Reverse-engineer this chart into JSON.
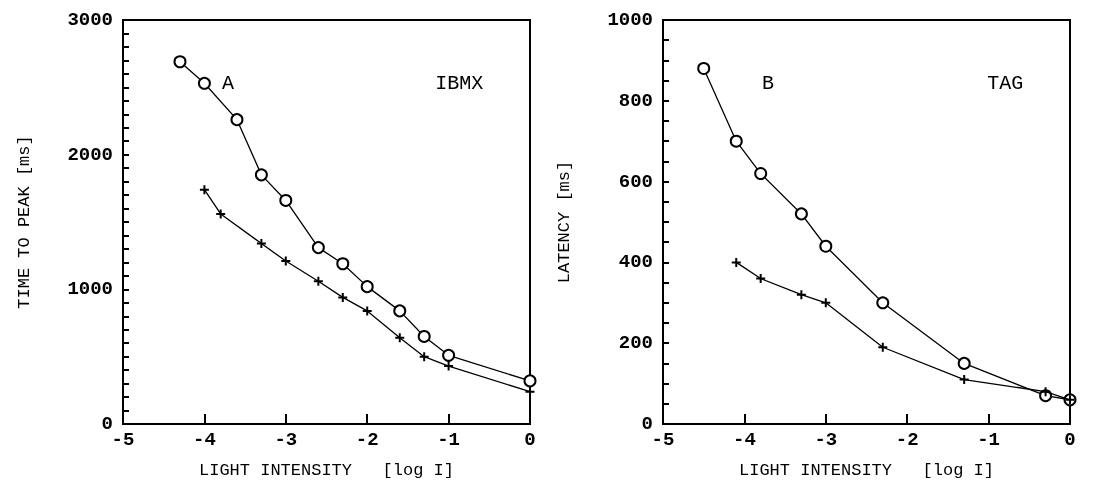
{
  "chart_data": [
    {
      "type": "line",
      "xlabel": "LIGHT INTENSITY   [log I]",
      "ylabel": "TIME TO PEAK [ms]",
      "annotations": [
        "A",
        "IBMX"
      ],
      "xlim": [
        -5,
        0
      ],
      "xticks": [
        -5,
        -4,
        -3,
        -2,
        -1,
        0
      ],
      "ylim": [
        0,
        3000
      ],
      "yticks": [
        0,
        {
          "value": 100,
          "label": null
        },
        {
          "value": 200,
          "label": null
        },
        {
          "value": 300,
          "label": null
        },
        {
          "value": 400,
          "label": null
        },
        {
          "value": 500,
          "label": null
        },
        {
          "value": 600,
          "label": null
        },
        {
          "value": 700,
          "label": null
        },
        {
          "value": 800,
          "label": null
        },
        {
          "value": 900,
          "label": null
        },
        1000,
        {
          "value": 1100,
          "label": null
        },
        {
          "value": 1200,
          "label": null
        },
        {
          "value": 1300,
          "label": null
        },
        {
          "value": 1400,
          "label": null
        },
        {
          "value": 1500,
          "label": null
        },
        {
          "value": 1600,
          "label": null
        },
        {
          "value": 1700,
          "label": null
        },
        {
          "value": 1800,
          "label": null
        },
        {
          "value": 1900,
          "label": null
        },
        2000,
        {
          "value": 2100,
          "label": null
        },
        {
          "value": 2200,
          "label": null
        },
        {
          "value": 2300,
          "label": null
        },
        {
          "value": 2400,
          "label": null
        },
        {
          "value": 2500,
          "label": null
        },
        {
          "value": 2600,
          "label": null
        },
        {
          "value": 2700,
          "label": null
        },
        {
          "value": 2800,
          "label": null
        },
        {
          "value": 2900,
          "label": null
        },
        3000
      ],
      "grid": false,
      "line_style": "solid",
      "series": [
        {
          "color": "#000000",
          "marker": "circle",
          "x": [
            -4.3,
            -4.0,
            -3.6,
            -3.3,
            -3.0,
            -2.6,
            -2.3,
            -2.0,
            -1.6,
            -1.3,
            -1.0,
            0
          ],
          "values": [
            2690,
            2530,
            2260,
            1850,
            1660,
            1310,
            1190,
            1020,
            840,
            650,
            510,
            320
          ]
        },
        {
          "color": "#000000",
          "marker": "cross",
          "x": [
            -4.0,
            -3.8,
            -3.3,
            -3.0,
            -2.6,
            -2.3,
            -2.0,
            -1.6,
            -1.3,
            -1.0,
            0
          ],
          "values": [
            1740,
            1560,
            1340,
            1210,
            1060,
            940,
            840,
            640,
            500,
            430,
            240
          ]
        }
      ]
    },
    {
      "type": "line",
      "xlabel": "LIGHT INTENSITY   [log I]",
      "ylabel": "LATENCY [ms]",
      "annotations": [
        "B",
        "TAG"
      ],
      "xlim": [
        -5,
        0
      ],
      "xticks": [
        -5,
        -4,
        -3,
        -2,
        -1,
        0
      ],
      "ylim": [
        0,
        1000
      ],
      "yticks": [
        0,
        {
          "value": 50,
          "label": null
        },
        {
          "value": 100,
          "label": null
        },
        {
          "value": 150,
          "label": null
        },
        200,
        {
          "value": 250,
          "label": null
        },
        {
          "value": 300,
          "label": null
        },
        {
          "value": 350,
          "label": null
        },
        400,
        {
          "value": 450,
          "label": null
        },
        {
          "value": 500,
          "label": null
        },
        {
          "value": 550,
          "label": null
        },
        600,
        {
          "value": 650,
          "label": null
        },
        {
          "value": 700,
          "label": null
        },
        {
          "value": 750,
          "label": null
        },
        800,
        {
          "value": 850,
          "label": null
        },
        {
          "value": 900,
          "label": null
        },
        {
          "value": 950,
          "label": null
        },
        1000
      ],
      "grid": false,
      "line_style": "solid",
      "series": [
        {
          "color": "#000000",
          "marker": "circle",
          "x": [
            -4.5,
            -4.1,
            -3.8,
            -3.3,
            -3.0,
            -2.3,
            -1.3,
            -0.3,
            0
          ],
          "values": [
            880,
            700,
            620,
            520,
            440,
            300,
            150,
            70,
            60
          ]
        },
        {
          "color": "#000000",
          "marker": "cross",
          "x": [
            -4.1,
            -3.8,
            -3.3,
            -3.0,
            -2.3,
            -1.3,
            -0.3,
            0
          ],
          "values": [
            400,
            360,
            320,
            300,
            190,
            110,
            80,
            60
          ]
        }
      ]
    }
  ]
}
